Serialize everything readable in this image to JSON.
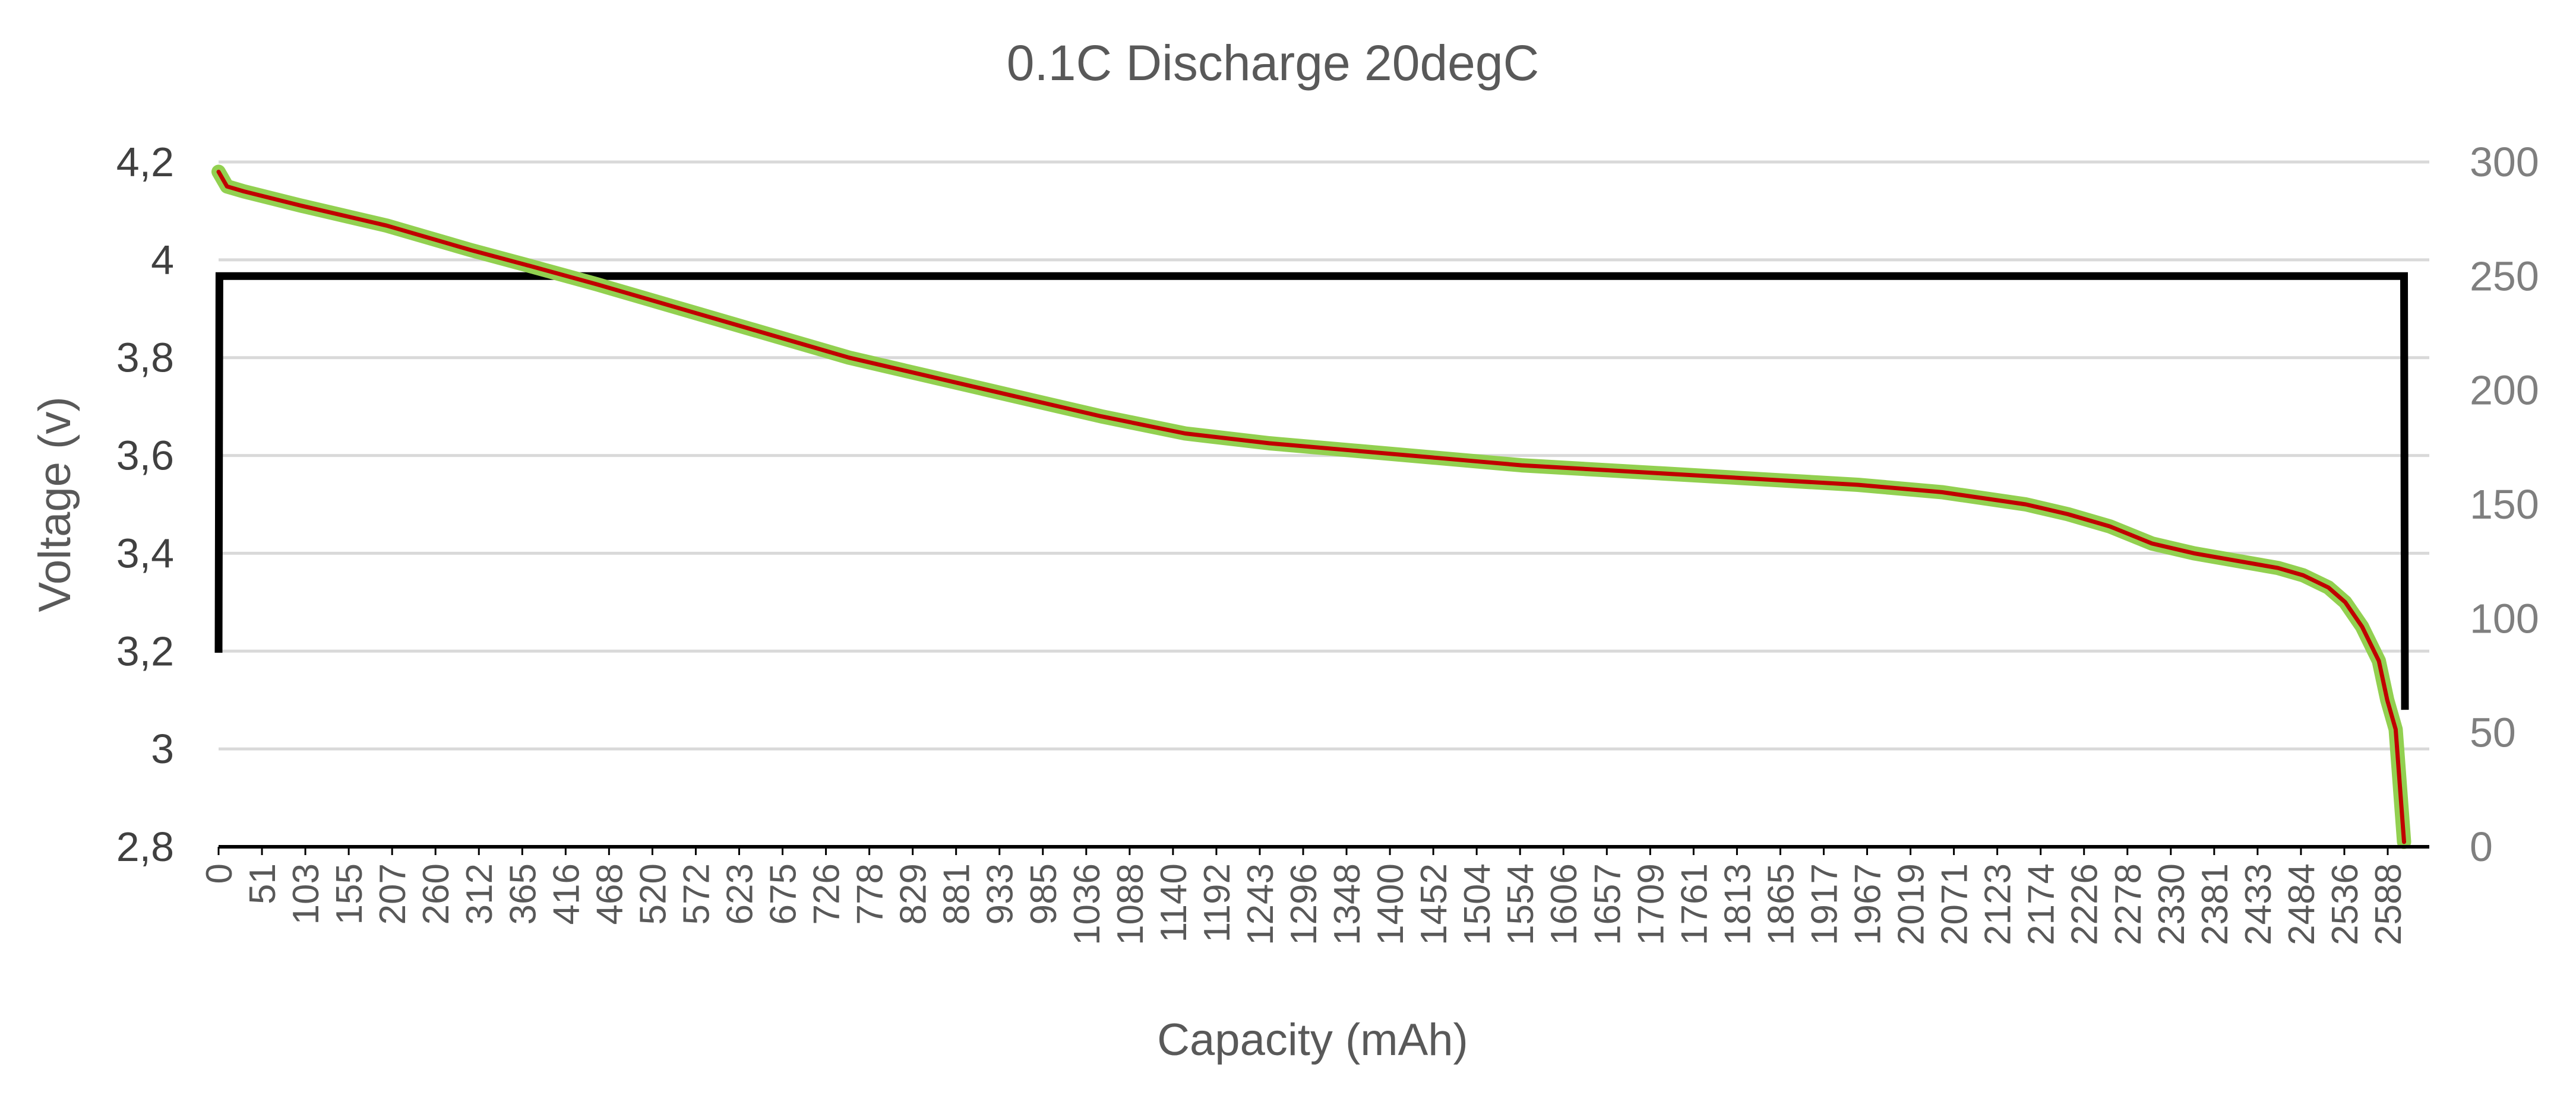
{
  "chart_data": {
    "type": "line",
    "title": "0.1C Discharge 20degC",
    "xlabel": "Capacity (mAh)",
    "ylabel": "Voltage (v)",
    "y2label": "",
    "ylim": [
      2.8,
      4.2
    ],
    "y2lim": [
      0,
      300
    ],
    "xlim": [
      0,
      2630
    ],
    "yticks": [
      "4,2",
      "4",
      "3,8",
      "3,6",
      "3,4",
      "3,2",
      "3",
      "2,8"
    ],
    "ytick_values": [
      4.2,
      4.0,
      3.8,
      3.6,
      3.4,
      3.2,
      3.0,
      2.8
    ],
    "y2ticks": [
      "300",
      "250",
      "200",
      "150",
      "100",
      "50",
      "0"
    ],
    "y2tick_values": [
      300,
      250,
      200,
      150,
      100,
      50,
      0
    ],
    "xticks": [
      "0",
      "51",
      "103",
      "155",
      "207",
      "260",
      "312",
      "365",
      "416",
      "468",
      "520",
      "572",
      "623",
      "675",
      "726",
      "778",
      "829",
      "881",
      "933",
      "985",
      "1036",
      "1088",
      "1140",
      "1192",
      "1243",
      "1296",
      "1348",
      "1400",
      "1452",
      "1504",
      "1554",
      "1606",
      "1657",
      "1709",
      "1761",
      "1813",
      "1865",
      "1917",
      "1967",
      "2019",
      "2071",
      "2123",
      "2174",
      "2226",
      "2278",
      "2330",
      "2381",
      "2433",
      "2484",
      "2536",
      "2588"
    ],
    "grid": true,
    "legend": "none",
    "colors": {
      "voltage": "#c00000",
      "voltage_halo": "#92d050",
      "current": "#000000"
    },
    "series": [
      {
        "axis": "left",
        "x": [
          0,
          10,
          30,
          100,
          200,
          300,
          365,
          450,
          550,
          650,
          750,
          850,
          950,
          1050,
          1150,
          1250,
          1350,
          1450,
          1550,
          1650,
          1750,
          1850,
          1950,
          2050,
          2150,
          2200,
          2250,
          2300,
          2350,
          2400,
          2450,
          2480,
          2510,
          2530,
          2550,
          2570,
          2580,
          2590,
          2600
        ],
        "y": [
          4.18,
          4.15,
          4.14,
          4.11,
          4.07,
          4.02,
          3.99,
          3.95,
          3.9,
          3.85,
          3.8,
          3.76,
          3.72,
          3.68,
          3.645,
          3.625,
          3.61,
          3.595,
          3.58,
          3.57,
          3.56,
          3.55,
          3.54,
          3.525,
          3.5,
          3.48,
          3.455,
          3.42,
          3.4,
          3.385,
          3.37,
          3.355,
          3.33,
          3.3,
          3.25,
          3.18,
          3.1,
          3.04,
          2.81
        ]
      },
      {
        "axis": "right",
        "x": [
          0,
          1,
          2600,
          2601
        ],
        "y": [
          85,
          250,
          250,
          60
        ]
      }
    ]
  }
}
